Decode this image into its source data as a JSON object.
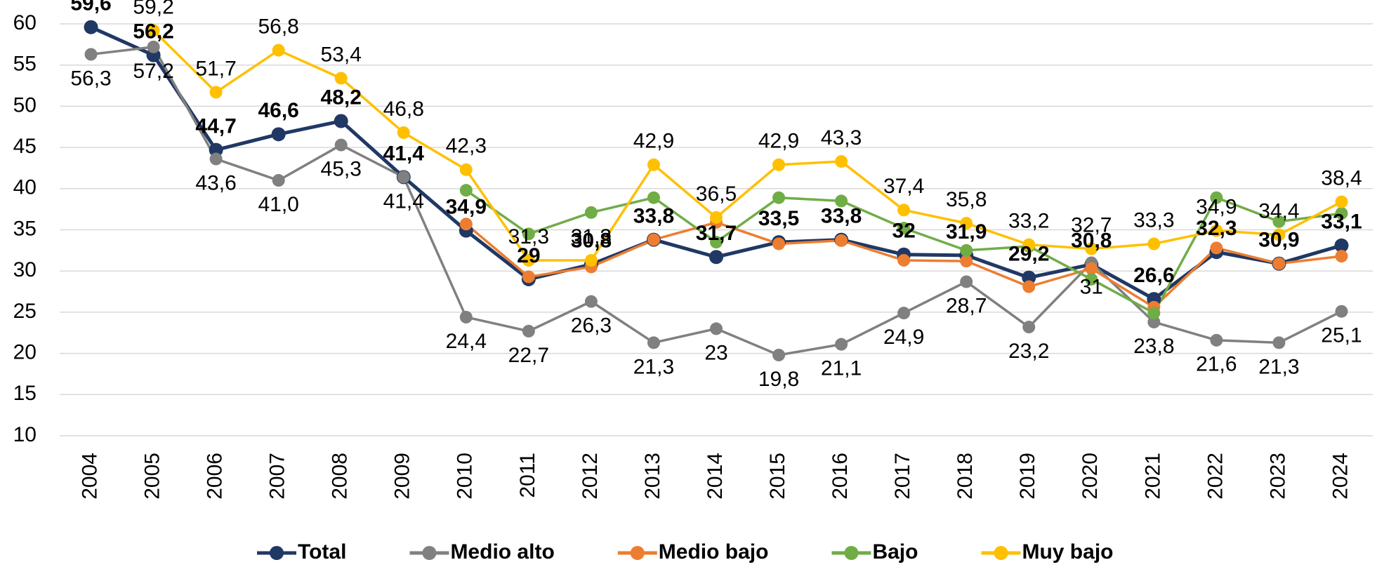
{
  "chart_data": {
    "type": "line",
    "categories": [
      "2004",
      "2005",
      "2006",
      "2007",
      "2008",
      "2009",
      "2010",
      "2011",
      "2012",
      "2013",
      "2014",
      "2015",
      "2016",
      "2017",
      "2018",
      "2019",
      "2020",
      "2021",
      "2022",
      "2023",
      "2024"
    ],
    "ylim": [
      10,
      60
    ],
    "yticks": [
      10,
      15,
      20,
      25,
      30,
      35,
      40,
      45,
      50,
      55,
      60
    ],
    "grid": true,
    "legend": "bottom",
    "series": [
      {
        "name": "Total",
        "color": "#203864",
        "values": [
          59.6,
          56.2,
          44.7,
          46.6,
          48.2,
          41.4,
          34.9,
          29,
          30.8,
          33.8,
          31.7,
          33.5,
          33.8,
          32,
          31.9,
          29.2,
          30.8,
          26.6,
          32.3,
          30.9,
          33.1
        ],
        "value_labels": [
          "59,6",
          "56,2",
          "44,7",
          "46,6",
          "48,2",
          "41,4",
          "34,9",
          "29",
          "30,8",
          "33,8",
          "31,7",
          "33,5",
          "33,8",
          "32",
          "31,9",
          "29,2",
          "30,8",
          "26,6",
          "32,3",
          "30,9",
          "33,1"
        ]
      },
      {
        "name": "Medio alto",
        "color": "#808080",
        "values": [
          56.3,
          57.2,
          43.6,
          41.0,
          45.3,
          41.4,
          24.4,
          22.7,
          26.3,
          21.3,
          23,
          19.8,
          21.1,
          24.9,
          28.7,
          23.2,
          31,
          23.8,
          21.6,
          21.3,
          25.1
        ],
        "value_labels": [
          "56,3",
          "57,2",
          "43,6",
          "41,0",
          "45,3",
          "41,4",
          "24,4",
          "22,7",
          "26,3",
          "21,3",
          "23",
          "19,8",
          "21,1",
          "24,9",
          "28,7",
          "23,2",
          "31",
          "23,8",
          "21,6",
          "21,3",
          "25,1"
        ]
      },
      {
        "name": "Medio bajo",
        "color": "#ED7D31",
        "values": [
          null,
          null,
          null,
          null,
          null,
          null,
          35.7,
          29.3,
          30.5,
          33.8,
          35.9,
          33.3,
          33.7,
          31.3,
          31.2,
          28.1,
          30.3,
          25.6,
          32.8,
          30.9,
          31.8
        ]
      },
      {
        "name": "Bajo",
        "color": "#70AD47",
        "values": [
          null,
          null,
          null,
          null,
          null,
          null,
          39.8,
          34.5,
          37.1,
          38.9,
          33.5,
          38.9,
          38.5,
          35.2,
          32.5,
          33.0,
          29.0,
          24.9,
          38.9,
          36.0,
          37.0
        ]
      },
      {
        "name": "Muy bajo",
        "color": "#FFC000",
        "values": [
          null,
          59.2,
          51.7,
          56.8,
          53.4,
          46.8,
          42.3,
          31.3,
          31.3,
          42.9,
          36.5,
          42.9,
          43.3,
          37.4,
          35.8,
          33.2,
          32.7,
          33.3,
          34.9,
          34.4,
          38.4
        ],
        "value_labels": [
          null,
          "59,2",
          "51,7",
          "56,8",
          "53,4",
          "46,8",
          "42,3",
          "31,3",
          "31,3",
          "42,9",
          "36,5",
          "42,9",
          "43,3",
          "37,4",
          "35,8",
          "33,2",
          "32,7",
          "33,3",
          "34,9",
          "34,4",
          "38,4"
        ]
      }
    ]
  }
}
